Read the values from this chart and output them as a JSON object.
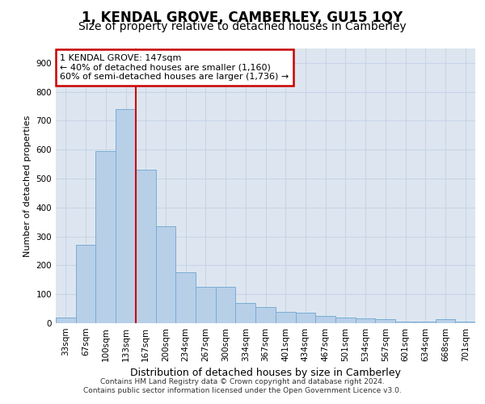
{
  "title": "1, KENDAL GROVE, CAMBERLEY, GU15 1QY",
  "subtitle": "Size of property relative to detached houses in Camberley",
  "xlabel": "Distribution of detached houses by size in Camberley",
  "ylabel": "Number of detached properties",
  "categories": [
    "33sqm",
    "67sqm",
    "100sqm",
    "133sqm",
    "167sqm",
    "200sqm",
    "234sqm",
    "267sqm",
    "300sqm",
    "334sqm",
    "367sqm",
    "401sqm",
    "434sqm",
    "467sqm",
    "501sqm",
    "534sqm",
    "567sqm",
    "601sqm",
    "634sqm",
    "668sqm",
    "701sqm"
  ],
  "values": [
    20,
    270,
    595,
    740,
    530,
    335,
    175,
    125,
    125,
    70,
    55,
    40,
    35,
    25,
    20,
    18,
    15,
    5,
    5,
    15,
    5
  ],
  "bar_color": "#b8cfe8",
  "bar_edge_color": "#7aadd4",
  "vline_color": "#cc0000",
  "vline_x": 3.5,
  "annotation_line1": "1 KENDAL GROVE: 147sqm",
  "annotation_line2": "← 40% of detached houses are smaller (1,160)",
  "annotation_line3": "60% of semi-detached houses are larger (1,736) →",
  "annotation_box_color": "#cc0000",
  "annotation_box_fill": "white",
  "grid_color": "#c8d4e8",
  "background_color": "#dde6f0",
  "ylim": [
    0,
    950
  ],
  "yticks": [
    0,
    100,
    200,
    300,
    400,
    500,
    600,
    700,
    800,
    900
  ],
  "footer_line1": "Contains HM Land Registry data © Crown copyright and database right 2024.",
  "footer_line2": "Contains public sector information licensed under the Open Government Licence v3.0.",
  "title_fontsize": 12,
  "subtitle_fontsize": 10,
  "xlabel_fontsize": 9,
  "ylabel_fontsize": 8,
  "tick_fontsize": 7.5,
  "annotation_fontsize": 8,
  "footer_fontsize": 6.5
}
